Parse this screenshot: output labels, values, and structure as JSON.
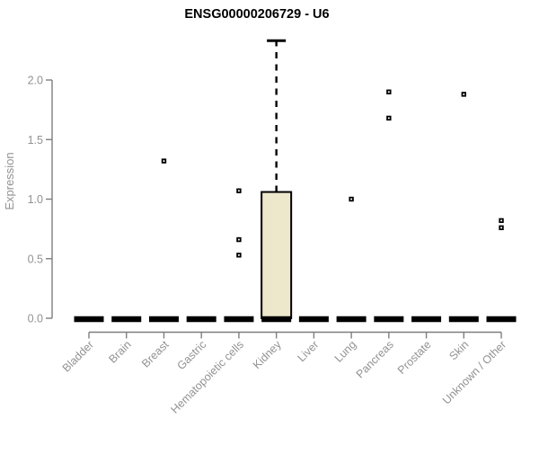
{
  "chart_data": {
    "type": "boxplot",
    "title": "ENSG00000206729 - U6",
    "ylabel": "Expression",
    "xlabel": "",
    "ylim": [
      0.0,
      2.0
    ],
    "yticks": [
      0.0,
      0.5,
      1.0,
      1.5,
      2.0
    ],
    "grid": false,
    "legend": "none",
    "categories": [
      "Bladder",
      "Brain",
      "Breast",
      "Gastric",
      "Hematopoietic cells",
      "Kidney",
      "Liver",
      "Lung",
      "Pancreas",
      "Prostate",
      "Skin",
      "Unknown / Other"
    ],
    "series": [
      {
        "category": "Bladder",
        "whisker_low": 0.0,
        "q1": 0.0,
        "median": 0.0,
        "q3": 0.0,
        "whisker_high": 0.0,
        "outliers": []
      },
      {
        "category": "Brain",
        "whisker_low": 0.0,
        "q1": 0.0,
        "median": 0.0,
        "q3": 0.0,
        "whisker_high": 0.0,
        "outliers": []
      },
      {
        "category": "Breast",
        "whisker_low": 0.0,
        "q1": 0.0,
        "median": 0.0,
        "q3": 0.0,
        "whisker_high": 0.0,
        "outliers": [
          1.32
        ]
      },
      {
        "category": "Gastric",
        "whisker_low": 0.0,
        "q1": 0.0,
        "median": 0.0,
        "q3": 0.0,
        "whisker_high": 0.0,
        "outliers": []
      },
      {
        "category": "Hematopoietic cells",
        "whisker_low": 0.0,
        "q1": 0.0,
        "median": 0.0,
        "q3": 0.0,
        "whisker_high": 0.0,
        "outliers": [
          1.07,
          0.66,
          0.53
        ]
      },
      {
        "category": "Kidney",
        "whisker_low": 0.0,
        "q1": 0.0,
        "median": 0.0,
        "q3": 1.06,
        "whisker_high": 2.33,
        "outliers": []
      },
      {
        "category": "Liver",
        "whisker_low": 0.0,
        "q1": 0.0,
        "median": 0.0,
        "q3": 0.0,
        "whisker_high": 0.0,
        "outliers": []
      },
      {
        "category": "Lung",
        "whisker_low": 0.0,
        "q1": 0.0,
        "median": 0.0,
        "q3": 0.0,
        "whisker_high": 0.0,
        "outliers": [
          1.0
        ]
      },
      {
        "category": "Pancreas",
        "whisker_low": 0.0,
        "q1": 0.0,
        "median": 0.0,
        "q3": 0.0,
        "whisker_high": 0.0,
        "outliers": [
          1.9,
          1.68
        ]
      },
      {
        "category": "Prostate",
        "whisker_low": 0.0,
        "q1": 0.0,
        "median": 0.0,
        "q3": 0.0,
        "whisker_high": 0.0,
        "outliers": []
      },
      {
        "category": "Skin",
        "whisker_low": 0.0,
        "q1": 0.0,
        "median": 0.0,
        "q3": 0.0,
        "whisker_high": 0.0,
        "outliers": [
          1.88
        ]
      },
      {
        "category": "Unknown / Other",
        "whisker_low": 0.0,
        "q1": 0.0,
        "median": 0.0,
        "q3": 0.0,
        "whisker_high": 0.0,
        "outliers": [
          0.82,
          0.76
        ]
      }
    ],
    "colors": {
      "background": "#FFFFFF",
      "box_fill": "#EDE8CC",
      "box_stroke": "#000000",
      "median_color": "#000000",
      "whisker_color": "#000000",
      "outlier_color": "#000000",
      "axis_color": "#7E7E7E",
      "tick_label_color": "#929292",
      "title_color": "#000000"
    },
    "marker": "open-square",
    "whisker_style": "dashed"
  }
}
